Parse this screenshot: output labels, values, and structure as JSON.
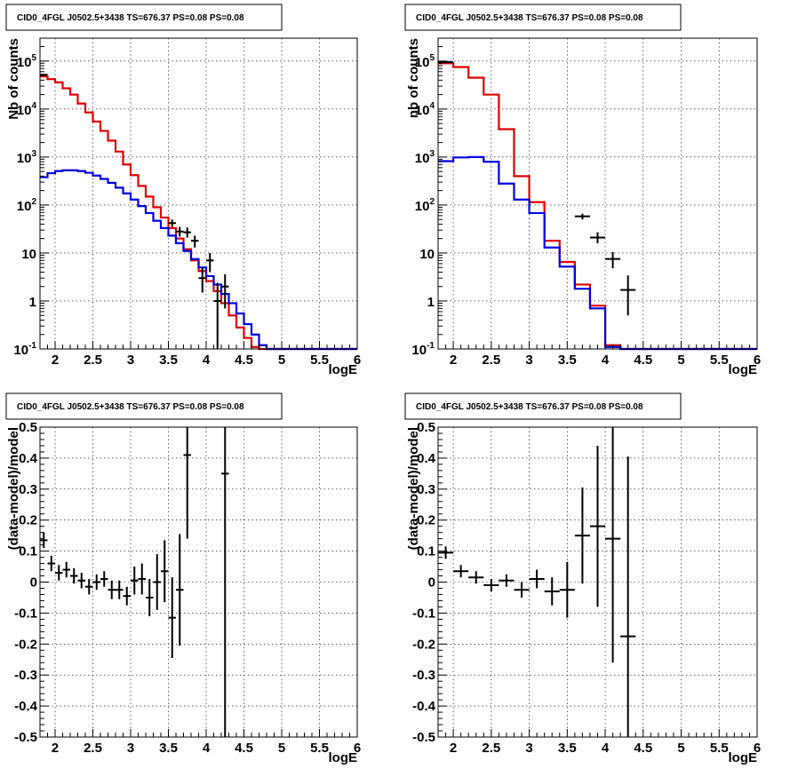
{
  "panel_title": "CID0_4FGL J0502.5+3438 TS=676.37 PS=0.08 PS=0.08",
  "chart_data": [
    {
      "type": "line",
      "xlabel": "logE",
      "ylabel": "Nb of counts",
      "xlim": [
        1.8,
        6.0
      ],
      "ylim": [
        0.1,
        300000
      ],
      "yscale": "log",
      "grid": true,
      "x_ticks": [
        "2",
        "2.5",
        "3",
        "3.5",
        "4",
        "4.5",
        "5",
        "5.5",
        "6"
      ],
      "y_ticks": [
        "10^-1",
        "1",
        "10",
        "10^2",
        "10^3",
        "10^4",
        "10^5"
      ],
      "bin_edges": [
        1.8,
        1.9,
        2.0,
        2.1,
        2.2,
        2.3,
        2.4,
        2.5,
        2.6,
        2.7,
        2.8,
        2.9,
        3.0,
        3.1,
        3.2,
        3.3,
        3.4,
        3.5,
        3.6,
        3.7,
        3.8,
        3.9,
        4.0,
        4.1,
        4.2,
        4.3,
        4.4,
        4.5,
        4.6,
        4.7,
        4.8,
        4.9,
        5.0,
        5.1,
        5.2,
        5.3,
        5.4,
        5.5,
        5.6,
        5.7,
        5.8,
        5.9,
        6.0
      ],
      "series": [
        {
          "color": "#e00000",
          "values": [
            48000,
            42000,
            36000,
            27000,
            20000,
            13000,
            8500,
            5500,
            3500,
            2200,
            1300,
            700,
            420,
            250,
            150,
            90,
            55,
            33,
            20,
            12,
            7,
            4.2,
            2.6,
            1.6,
            0.9,
            0.5,
            0.28,
            0.17,
            0.11,
            0.1,
            0.1,
            0.1,
            0.1,
            0.1,
            0.1,
            0.1,
            0.1,
            0.1,
            0.1,
            0.1,
            0.1,
            0.1
          ]
        },
        {
          "color": "#0000e0",
          "values": [
            380,
            460,
            510,
            530,
            530,
            510,
            470,
            410,
            350,
            290,
            230,
            175,
            130,
            95,
            68,
            47,
            33,
            23,
            16,
            11,
            7.5,
            5,
            3.3,
            2.2,
            1.4,
            0.9,
            0.55,
            0.33,
            0.2,
            0.12,
            0.1,
            0.1,
            0.1,
            0.1,
            0.1,
            0.1,
            0.1,
            0.1,
            0.1,
            0.1,
            0.1,
            0.1
          ]
        }
      ],
      "data_points": [
        {
          "x": 1.85,
          "y": 52000,
          "lo": 50000,
          "hi": 54000
        },
        {
          "x": 3.55,
          "y": 42,
          "lo": 35,
          "hi": 50
        },
        {
          "x": 3.65,
          "y": 28,
          "lo": 22,
          "hi": 35
        },
        {
          "x": 3.75,
          "y": 27,
          "lo": 21,
          "hi": 34
        },
        {
          "x": 3.85,
          "y": 18,
          "lo": 13,
          "hi": 23
        },
        {
          "x": 3.95,
          "y": 3,
          "lo": 1.5,
          "hi": 5
        },
        {
          "x": 4.05,
          "y": 7,
          "lo": 4,
          "hi": 10
        },
        {
          "x": 4.15,
          "y": 1,
          "lo": 0.1,
          "hi": 2.4
        },
        {
          "x": 4.25,
          "y": 2,
          "lo": 0.7,
          "hi": 3.6
        }
      ]
    },
    {
      "type": "line",
      "xlabel": "logE",
      "ylabel": "nb of counts",
      "xlim": [
        1.8,
        6.0
      ],
      "ylim": [
        0.1,
        300000
      ],
      "yscale": "log",
      "grid": true,
      "x_ticks": [
        "2",
        "2.5",
        "3",
        "3.5",
        "4",
        "4.5",
        "5",
        "5.5",
        "6"
      ],
      "y_ticks": [
        "10^-1",
        "1",
        "10",
        "10^2",
        "10^3",
        "10^4",
        "10^5"
      ],
      "bin_edges": [
        1.8,
        2.0,
        2.2,
        2.4,
        2.6,
        2.8,
        3.0,
        3.2,
        3.4,
        3.6,
        3.8,
        4.0,
        4.2,
        4.4,
        4.6,
        4.8,
        5.0,
        5.2,
        5.4,
        5.6,
        5.8,
        6.0
      ],
      "series": [
        {
          "color": "#e00000",
          "values": [
            90000,
            75000,
            45000,
            20000,
            3800,
            400,
            115,
            18,
            6.5,
            2.2,
            0.8,
            0.12,
            0.1,
            0.1,
            0.1,
            0.1,
            0.1,
            0.1,
            0.1,
            0.1,
            0.1
          ]
        },
        {
          "color": "#0000e0",
          "values": [
            820,
            980,
            1000,
            800,
            280,
            130,
            68,
            13,
            5.2,
            1.8,
            0.7,
            0.11,
            0.1,
            0.1,
            0.1,
            0.1,
            0.1,
            0.1,
            0.1,
            0.1,
            0.1
          ]
        }
      ],
      "data_points": [
        {
          "x": 1.9,
          "y": 95000,
          "lo": 92000,
          "hi": 98000
        },
        {
          "x": 3.7,
          "y": 58,
          "lo": 50,
          "hi": 66
        },
        {
          "x": 3.9,
          "y": 21,
          "lo": 16,
          "hi": 27
        },
        {
          "x": 4.1,
          "y": 7.5,
          "lo": 4.8,
          "hi": 10.5
        },
        {
          "x": 4.3,
          "y": 1.7,
          "lo": 0.5,
          "hi": 3.4
        }
      ]
    },
    {
      "type": "scatter",
      "xlabel": "logE",
      "ylabel": "(data-model)/model",
      "xlim": [
        1.8,
        6.0
      ],
      "ylim": [
        -0.5,
        0.5
      ],
      "grid": true,
      "x_ticks": [
        "2",
        "2.5",
        "3",
        "3.5",
        "4",
        "4.5",
        "5",
        "5.5",
        "6"
      ],
      "y_ticks": [
        "-0.5",
        "-0.4",
        "-0.3",
        "-0.2",
        "-0.1",
        "0",
        "0.1",
        "0.2",
        "0.3",
        "0.4",
        "0.5"
      ],
      "xhalfwidth": 0.05,
      "data_points": [
        {
          "x": 1.85,
          "y": 0.135,
          "err": 0.025
        },
        {
          "x": 1.95,
          "y": 0.06,
          "err": 0.025
        },
        {
          "x": 2.05,
          "y": 0.03,
          "err": 0.025
        },
        {
          "x": 2.15,
          "y": 0.04,
          "err": 0.025
        },
        {
          "x": 2.25,
          "y": 0.02,
          "err": 0.025
        },
        {
          "x": 2.35,
          "y": 0.005,
          "err": 0.025
        },
        {
          "x": 2.45,
          "y": -0.015,
          "err": 0.025
        },
        {
          "x": 2.55,
          "y": 0.0,
          "err": 0.025
        },
        {
          "x": 2.65,
          "y": 0.01,
          "err": 0.025
        },
        {
          "x": 2.75,
          "y": -0.025,
          "err": 0.03
        },
        {
          "x": 2.85,
          "y": -0.025,
          "err": 0.03
        },
        {
          "x": 2.95,
          "y": -0.045,
          "err": 0.03
        },
        {
          "x": 3.05,
          "y": 0.005,
          "err": 0.045
        },
        {
          "x": 3.15,
          "y": 0.01,
          "err": 0.05
        },
        {
          "x": 3.25,
          "y": -0.05,
          "err": 0.06
        },
        {
          "x": 3.35,
          "y": 0.0,
          "err": 0.09
        },
        {
          "x": 3.45,
          "y": 0.035,
          "err": 0.1
        },
        {
          "x": 3.55,
          "y": -0.115,
          "err": 0.13
        },
        {
          "x": 3.65,
          "y": -0.025,
          "err": 0.18
        },
        {
          "x": 3.75,
          "y": 0.41,
          "err": 0.27
        },
        {
          "x": 4.25,
          "y": 0.35,
          "err": 1.0
        }
      ]
    },
    {
      "type": "scatter",
      "xlabel": "logE",
      "ylabel": "(data-model)/model",
      "xlim": [
        1.8,
        6.0
      ],
      "ylim": [
        -0.5,
        0.5
      ],
      "grid": true,
      "x_ticks": [
        "2",
        "2.5",
        "3",
        "3.5",
        "4",
        "4.5",
        "5",
        "5.5",
        "6"
      ],
      "y_ticks": [
        "-0.5",
        "-0.4",
        "-0.3",
        "-0.2",
        "-0.1",
        "0",
        "0.1",
        "0.2",
        "0.3",
        "0.4",
        "0.5"
      ],
      "xhalfwidth": 0.1,
      "data_points": [
        {
          "x": 1.9,
          "y": 0.095,
          "err": 0.02
        },
        {
          "x": 2.1,
          "y": 0.035,
          "err": 0.02
        },
        {
          "x": 2.3,
          "y": 0.015,
          "err": 0.02
        },
        {
          "x": 2.5,
          "y": -0.01,
          "err": 0.02
        },
        {
          "x": 2.7,
          "y": 0.005,
          "err": 0.02
        },
        {
          "x": 2.9,
          "y": -0.025,
          "err": 0.025
        },
        {
          "x": 3.1,
          "y": 0.01,
          "err": 0.03
        },
        {
          "x": 3.3,
          "y": -0.03,
          "err": 0.045
        },
        {
          "x": 3.5,
          "y": -0.025,
          "err": 0.09
        },
        {
          "x": 3.7,
          "y": 0.15,
          "err": 0.155
        },
        {
          "x": 3.9,
          "y": 0.18,
          "err": 0.26
        },
        {
          "x": 4.1,
          "y": 0.14,
          "err": 0.4
        },
        {
          "x": 4.3,
          "y": -0.175,
          "err": 0.58
        }
      ]
    }
  ]
}
